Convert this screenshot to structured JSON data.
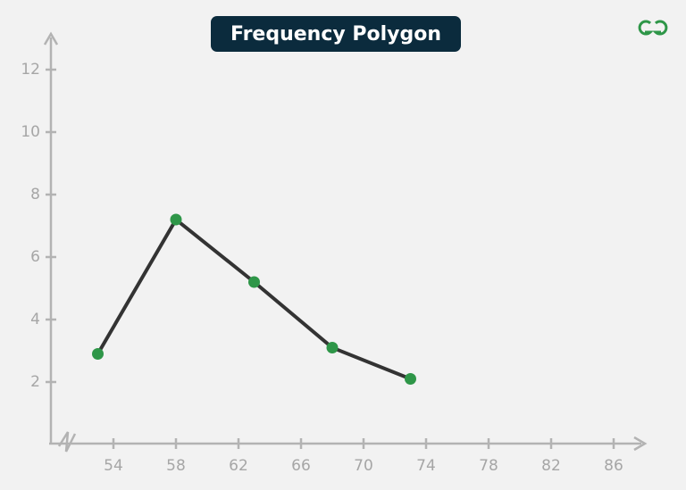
{
  "chart_data": {
    "type": "line",
    "title": "Frequency Polygon",
    "x": [
      53,
      58,
      63,
      68,
      73
    ],
    "series": [
      {
        "color": "#333333",
        "marker_color": "#2e9648",
        "values": [
          2.9,
          7.2,
          5.2,
          3.1,
          2.1
        ]
      }
    ],
    "xlim": [
      50,
      88
    ],
    "xticks": [
      54,
      58,
      62,
      66,
      70,
      74,
      78,
      82,
      86
    ],
    "ylim": [
      0,
      13
    ],
    "yticks": [
      2,
      4,
      6,
      8,
      10,
      12
    ]
  }
}
